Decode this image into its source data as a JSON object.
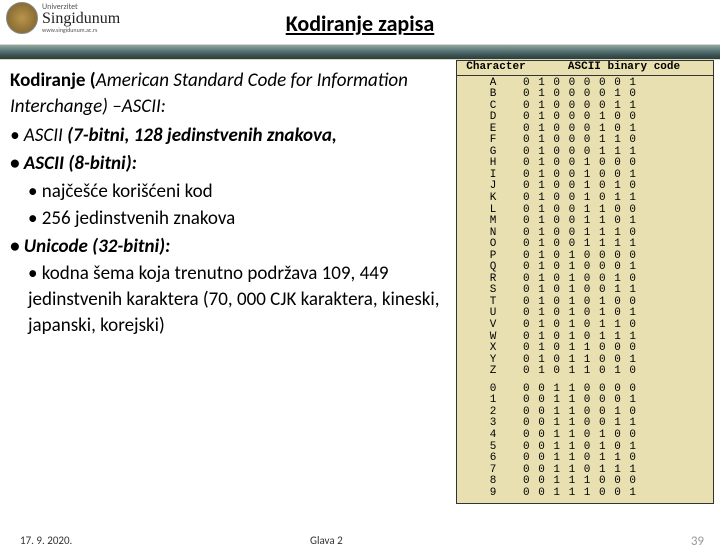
{
  "header": {
    "logo": {
      "univerzitet": "Univerzitet",
      "name": "Singidunum",
      "url": "www.singidunum.ac.rs"
    },
    "title": "Kodiranje zapisa"
  },
  "content": {
    "intro1": "Kodiranje (",
    "intro2": "American Standard Code for Information Interchange) –ASCII:",
    "bullet1a": "• ASCII ",
    "bullet1b": "(7-bitni, 128 jedinstvenih znakova,",
    "bullet2": "• ASCII (8-bitni):",
    "sub2a": "• najčešće korišćeni kod",
    "sub2b": "• 256 jedinstvenih znakova",
    "bullet3": "• Unicode (32-bitni):",
    "sub3a": "• kodna šema koja trenutno podržava 109, 449 jedinstvenih karaktera (70, 000 CJK karaktera, kineski, japanski, korejski)"
  },
  "ascii": {
    "head_char": "Character",
    "head_code": "ASCII binary code",
    "letters": [
      {
        "ch": "A",
        "cd": "0 1 0 0 0 0 0 1"
      },
      {
        "ch": "B",
        "cd": "0 1 0 0 0 0 1 0"
      },
      {
        "ch": "C",
        "cd": "0 1 0 0 0 0 1 1"
      },
      {
        "ch": "D",
        "cd": "0 1 0 0 0 1 0 0"
      },
      {
        "ch": "E",
        "cd": "0 1 0 0 0 1 0 1"
      },
      {
        "ch": "F",
        "cd": "0 1 0 0 0 1 1 0"
      },
      {
        "ch": "G",
        "cd": "0 1 0 0 0 1 1 1"
      },
      {
        "ch": "H",
        "cd": "0 1 0 0 1 0 0 0"
      },
      {
        "ch": "I",
        "cd": "0 1 0 0 1 0 0 1"
      },
      {
        "ch": "J",
        "cd": "0 1 0 0 1 0 1 0"
      },
      {
        "ch": "K",
        "cd": "0 1 0 0 1 0 1 1"
      },
      {
        "ch": "L",
        "cd": "0 1 0 0 1 1 0 0"
      },
      {
        "ch": "M",
        "cd": "0 1 0 0 1 1 0 1"
      },
      {
        "ch": "N",
        "cd": "0 1 0 0 1 1 1 0"
      },
      {
        "ch": "O",
        "cd": "0 1 0 0 1 1 1 1"
      },
      {
        "ch": "P",
        "cd": "0 1 0 1 0 0 0 0"
      },
      {
        "ch": "Q",
        "cd": "0 1 0 1 0 0 0 1"
      },
      {
        "ch": "R",
        "cd": "0 1 0 1 0 0 1 0"
      },
      {
        "ch": "S",
        "cd": "0 1 0 1 0 0 1 1"
      },
      {
        "ch": "T",
        "cd": "0 1 0 1 0 1 0 0"
      },
      {
        "ch": "U",
        "cd": "0 1 0 1 0 1 0 1"
      },
      {
        "ch": "V",
        "cd": "0 1 0 1 0 1 1 0"
      },
      {
        "ch": "W",
        "cd": "0 1 0 1 0 1 1 1"
      },
      {
        "ch": "X",
        "cd": "0 1 0 1 1 0 0 0"
      },
      {
        "ch": "Y",
        "cd": "0 1 0 1 1 0 0 1"
      },
      {
        "ch": "Z",
        "cd": "0 1 0 1 1 0 1 0"
      }
    ],
    "digits": [
      {
        "ch": "0",
        "cd": "0 0 1 1 0 0 0 0"
      },
      {
        "ch": "1",
        "cd": "0 0 1 1 0 0 0 1"
      },
      {
        "ch": "2",
        "cd": "0 0 1 1 0 0 1 0"
      },
      {
        "ch": "3",
        "cd": "0 0 1 1 0 0 1 1"
      },
      {
        "ch": "4",
        "cd": "0 0 1 1 0 1 0 0"
      },
      {
        "ch": "5",
        "cd": "0 0 1 1 0 1 0 1"
      },
      {
        "ch": "6",
        "cd": "0 0 1 1 0 1 1 0"
      },
      {
        "ch": "7",
        "cd": "0 0 1 1 0 1 1 1"
      },
      {
        "ch": "8",
        "cd": "0 0 1 1 1 0 0 0"
      },
      {
        "ch": "9",
        "cd": "0 0 1 1 1 0 0 1"
      }
    ]
  },
  "footer": {
    "date": "17. 9. 2020.",
    "chapter": "Glava 2",
    "page": "39"
  }
}
